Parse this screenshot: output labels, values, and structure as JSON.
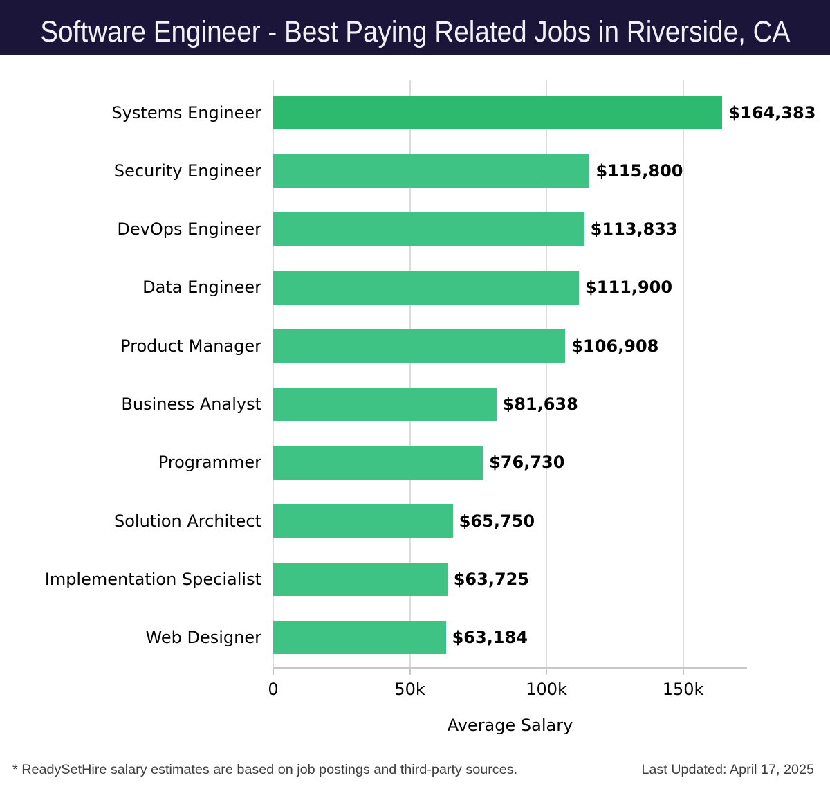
{
  "header": {
    "title": "Software Engineer - Best Paying Related Jobs in Riverside, CA",
    "bg_color": "#1a1539",
    "text_color": "#f2f1f7"
  },
  "chart_data": {
    "type": "bar",
    "orientation": "horizontal",
    "title": "Software Engineer - Best Paying Related Jobs in Riverside, CA",
    "xlabel": "Average Salary",
    "ylabel": "",
    "categories": [
      "Systems Engineer",
      "Security Engineer",
      "DevOps Engineer",
      "Data Engineer",
      "Product Manager",
      "Business Analyst",
      "Programmer",
      "Solution Architect",
      "Implementation Specialist",
      "Web Designer"
    ],
    "values": [
      164383,
      115800,
      113833,
      111900,
      106908,
      81638,
      76730,
      65750,
      63725,
      63184
    ],
    "value_labels": [
      "$164,383",
      "$115,800",
      "$113,833",
      "$111,900",
      "$106,908",
      "$81,638",
      "$76,730",
      "$65,750",
      "$63,725",
      "$63,184"
    ],
    "x_ticks": [
      {
        "value": 0,
        "label": "0"
      },
      {
        "value": 50000,
        "label": "50k"
      },
      {
        "value": 100000,
        "label": "100k"
      },
      {
        "value": 150000,
        "label": "150k"
      }
    ],
    "xlim": [
      0,
      173400
    ],
    "grid": true,
    "legend": false,
    "highlight_color": "#2db96e",
    "bar_color": "#3fc385",
    "grid_color": "#dcdcdc",
    "axis_color": "#c7c7c7"
  },
  "footer": {
    "note": "* ReadySetHire salary estimates are based on job postings and third-party sources.",
    "updated": "Last Updated: April 17, 2025"
  }
}
